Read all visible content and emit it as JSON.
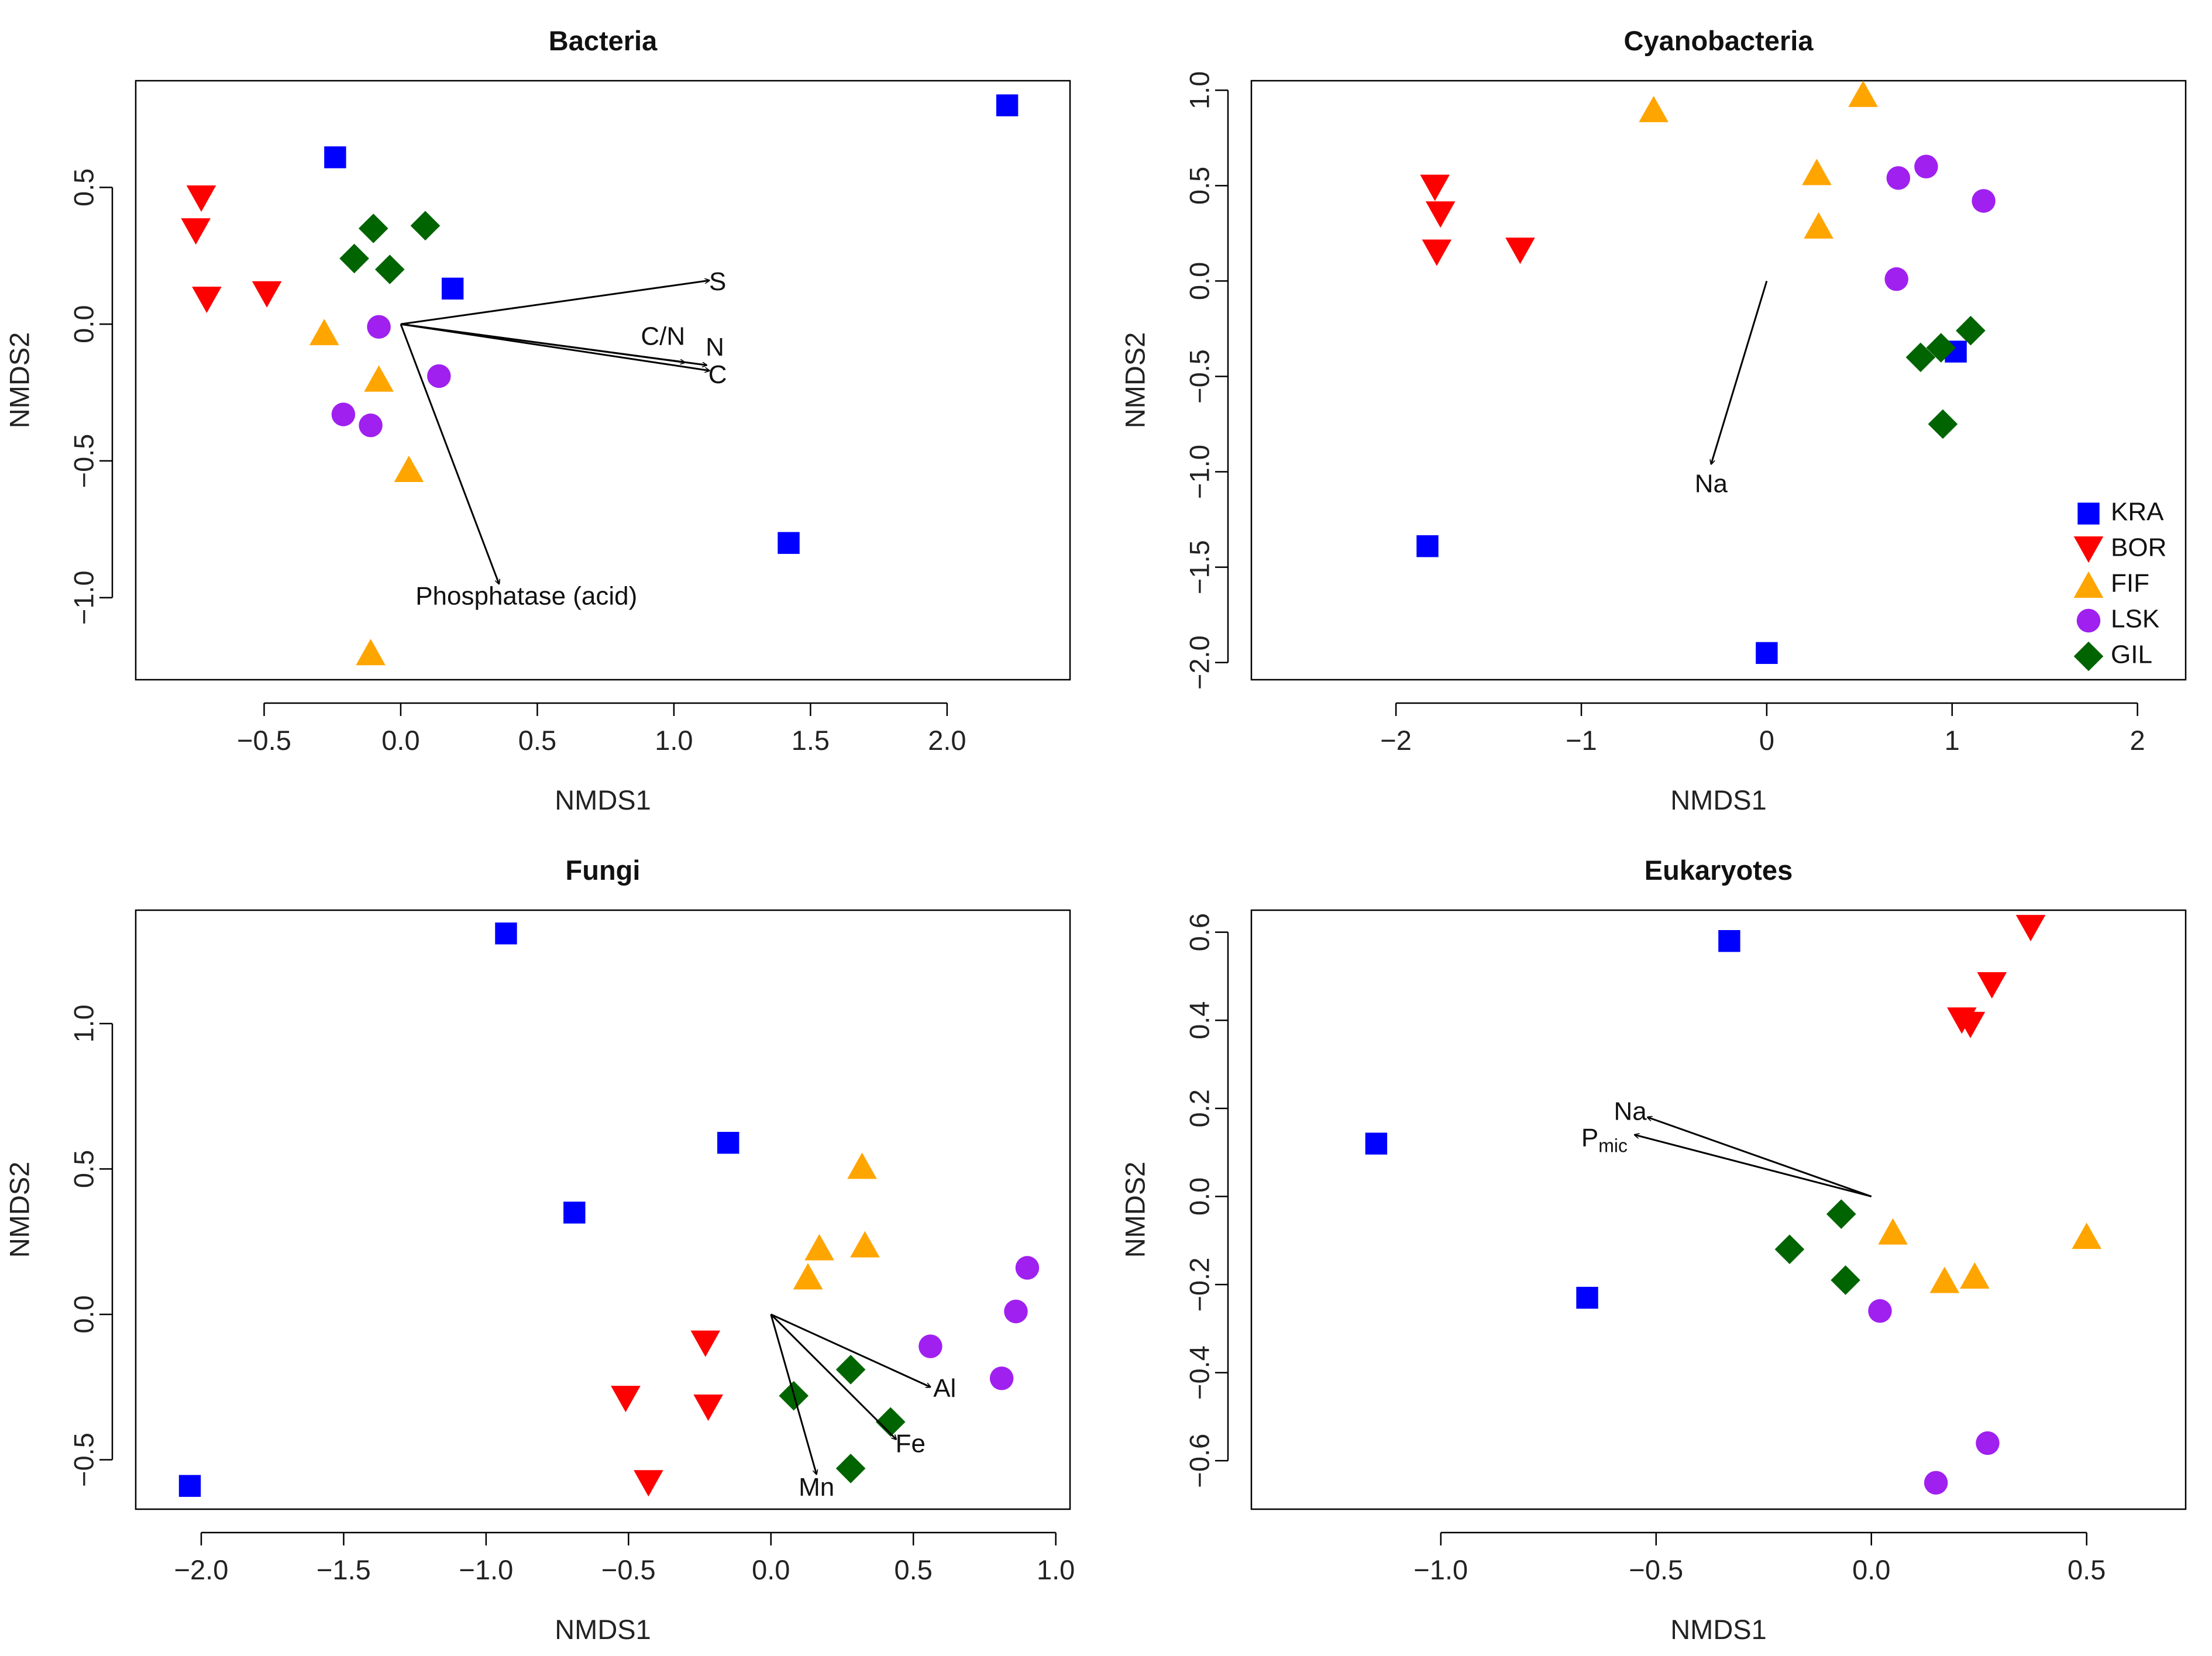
{
  "colors": {
    "KRA": "#0000ff",
    "BOR": "#ff0000",
    "FIF": "#ffa500",
    "LSK": "#a020f0",
    "GIL": "#006400"
  },
  "legend": {
    "placement": "bottom-right of Cyanobacteria panel",
    "items": [
      {
        "label": "KRA",
        "shape": "square"
      },
      {
        "label": "BOR",
        "shape": "triangle-down"
      },
      {
        "label": "FIF",
        "shape": "triangle-up"
      },
      {
        "label": "LSK",
        "shape": "circle"
      },
      {
        "label": "GIL",
        "shape": "diamond"
      }
    ]
  },
  "chart_data": [
    {
      "type": "scatter",
      "title": "Bacteria",
      "xlabel": "NMDS1",
      "ylabel": "NMDS2",
      "xlim": [
        -0.97,
        2.45
      ],
      "ylim": [
        -1.3,
        0.89
      ],
      "xticks": [
        -0.5,
        0.0,
        0.5,
        1.0,
        1.5,
        2.0
      ],
      "xtick_labels": [
        "−0.5",
        "0.0",
        "0.5",
        "1.0",
        "1.5",
        "2.0"
      ],
      "yticks": [
        -1.0,
        -0.5,
        0.0,
        0.5
      ],
      "ytick_labels": [
        "−1.0",
        "−0.5",
        "0.0",
        "0.5"
      ],
      "series": [
        {
          "name": "KRA",
          "points": [
            [
              -0.24,
              0.61
            ],
            [
              2.22,
              0.8
            ],
            [
              0.19,
              0.13
            ],
            [
              1.42,
              -0.8
            ]
          ]
        },
        {
          "name": "BOR",
          "points": [
            [
              -0.73,
              0.46
            ],
            [
              -0.75,
              0.34
            ],
            [
              -0.71,
              0.09
            ],
            [
              -0.49,
              0.11
            ]
          ]
        },
        {
          "name": "FIF",
          "points": [
            [
              -0.28,
              -0.03
            ],
            [
              -0.08,
              -0.2
            ],
            [
              0.03,
              -0.53
            ],
            [
              -0.11,
              -1.2
            ]
          ]
        },
        {
          "name": "LSK",
          "points": [
            [
              -0.08,
              -0.01
            ],
            [
              0.14,
              -0.19
            ],
            [
              -0.21,
              -0.33
            ],
            [
              -0.11,
              -0.37
            ]
          ]
        },
        {
          "name": "GIL",
          "points": [
            [
              -0.1,
              0.35
            ],
            [
              0.09,
              0.36
            ],
            [
              -0.17,
              0.24
            ],
            [
              -0.04,
              0.2
            ]
          ]
        }
      ],
      "vectors": [
        {
          "label": "S",
          "end": [
            1.13,
            0.16
          ],
          "label_at": [
            1.16,
            0.15
          ]
        },
        {
          "label": "C/N",
          "end": [
            1.04,
            -0.14
          ],
          "label_at": [
            0.96,
            -0.05
          ]
        },
        {
          "label": "N",
          "end": [
            1.12,
            -0.15
          ],
          "label_at": [
            1.15,
            -0.09
          ]
        },
        {
          "label": "C",
          "end": [
            1.13,
            -0.17
          ],
          "label_at": [
            1.16,
            -0.19
          ]
        },
        {
          "label": "Phosphatase (acid)",
          "end": [
            0.36,
            -0.95
          ],
          "label_at": [
            0.46,
            -1.0
          ]
        }
      ]
    },
    {
      "type": "scatter",
      "title": "Cyanobacteria",
      "xlabel": "NMDS1",
      "ylabel": "NMDS2",
      "xlim": [
        -2.78,
        2.26
      ],
      "ylim": [
        -2.09,
        1.05
      ],
      "xticks": [
        -2,
        -1,
        0,
        1,
        2
      ],
      "xtick_labels": [
        "−2",
        "−1",
        "0",
        "1",
        "2"
      ],
      "yticks": [
        -2.0,
        -1.5,
        -1.0,
        -0.5,
        0.0,
        0.5,
        1.0
      ],
      "ytick_labels": [
        "−2.0",
        "−1.5",
        "−1.0",
        "−0.5",
        "0.0",
        "0.5",
        "1.0"
      ],
      "series": [
        {
          "name": "KRA",
          "points": [
            [
              1.02,
              -0.37
            ],
            [
              -1.83,
              -1.39
            ],
            [
              0.0,
              -1.95
            ]
          ]
        },
        {
          "name": "BOR",
          "points": [
            [
              -1.79,
              0.49
            ],
            [
              -1.76,
              0.35
            ],
            [
              -1.78,
              0.15
            ],
            [
              -1.33,
              0.16
            ]
          ]
        },
        {
          "name": "FIF",
          "points": [
            [
              -0.61,
              0.9
            ],
            [
              0.52,
              0.98
            ],
            [
              0.27,
              0.57
            ],
            [
              0.28,
              0.29
            ]
          ]
        },
        {
          "name": "LSK",
          "points": [
            [
              0.71,
              0.54
            ],
            [
              0.86,
              0.6
            ],
            [
              1.17,
              0.42
            ],
            [
              0.7,
              0.01
            ]
          ]
        },
        {
          "name": "GIL",
          "points": [
            [
              1.1,
              -0.26
            ],
            [
              0.94,
              -0.35
            ],
            [
              0.83,
              -0.4
            ],
            [
              0.95,
              -0.75
            ]
          ]
        }
      ],
      "vectors": [
        {
          "label": "Na",
          "end": [
            -0.3,
            -0.96
          ],
          "label_at": [
            -0.3,
            -1.07
          ]
        }
      ]
    },
    {
      "type": "scatter",
      "title": "Fungi",
      "xlabel": "NMDS1",
      "ylabel": "NMDS2",
      "xlim": [
        -2.23,
        1.05
      ],
      "ylim": [
        -0.67,
        1.39
      ],
      "xticks": [
        -2.0,
        -1.5,
        -1.0,
        -0.5,
        0.0,
        0.5,
        1.0
      ],
      "xtick_labels": [
        "−2.0",
        "−1.5",
        "−1.0",
        "−0.5",
        "0.0",
        "0.5",
        "1.0"
      ],
      "yticks": [
        -0.5,
        0.0,
        0.5,
        1.0
      ],
      "ytick_labels": [
        "−0.5",
        "0.0",
        "0.5",
        "1.0"
      ],
      "series": [
        {
          "name": "KRA",
          "points": [
            [
              -0.93,
              1.31
            ],
            [
              -0.15,
              0.59
            ],
            [
              -0.69,
              0.35
            ],
            [
              -2.04,
              -0.59
            ]
          ]
        },
        {
          "name": "BOR",
          "points": [
            [
              -0.23,
              -0.1
            ],
            [
              -0.51,
              -0.29
            ],
            [
              -0.22,
              -0.32
            ],
            [
              -0.43,
              -0.58
            ]
          ]
        },
        {
          "name": "FIF",
          "points": [
            [
              0.32,
              0.51
            ],
            [
              0.33,
              0.24
            ],
            [
              0.17,
              0.23
            ],
            [
              0.13,
              0.13
            ]
          ]
        },
        {
          "name": "LSK",
          "points": [
            [
              0.9,
              0.16
            ],
            [
              0.86,
              0.01
            ],
            [
              0.56,
              -0.11
            ],
            [
              0.81,
              -0.22
            ]
          ]
        },
        {
          "name": "GIL",
          "points": [
            [
              0.28,
              -0.19
            ],
            [
              0.08,
              -0.28
            ],
            [
              0.42,
              -0.37
            ],
            [
              0.28,
              -0.53
            ]
          ]
        }
      ],
      "vectors": [
        {
          "label": "Al",
          "end": [
            0.56,
            -0.25
          ],
          "label_at": [
            0.61,
            -0.26
          ]
        },
        {
          "label": "Fe",
          "end": [
            0.44,
            -0.43
          ],
          "label_at": [
            0.49,
            -0.45
          ]
        },
        {
          "label": "Mn",
          "end": [
            0.16,
            -0.55
          ],
          "label_at": [
            0.16,
            -0.6
          ]
        }
      ]
    },
    {
      "type": "scatter",
      "title": "Eukaryotes",
      "xlabel": "NMDS1",
      "ylabel": "NMDS2",
      "xlim": [
        -1.44,
        0.73
      ],
      "ylim": [
        -0.71,
        0.65
      ],
      "xticks": [
        -1.0,
        -0.5,
        0.0,
        0.5
      ],
      "xtick_labels": [
        "−1.0",
        "−0.5",
        "0.0",
        "0.5"
      ],
      "yticks": [
        -0.6,
        -0.4,
        -0.2,
        0.0,
        0.2,
        0.4,
        0.6
      ],
      "ytick_labels": [
        "−0.6",
        "−0.4",
        "−0.2",
        "0.0",
        "0.2",
        "0.4",
        "0.6"
      ],
      "series": [
        {
          "name": "KRA",
          "points": [
            [
              -0.33,
              0.58
            ],
            [
              -1.15,
              0.12
            ],
            [
              -0.66,
              -0.23
            ]
          ]
        },
        {
          "name": "BOR",
          "points": [
            [
              0.37,
              0.61
            ],
            [
              0.28,
              0.48
            ],
            [
              0.21,
              0.4
            ],
            [
              0.23,
              0.39
            ]
          ]
        },
        {
          "name": "FIF",
          "points": [
            [
              0.05,
              -0.08
            ],
            [
              0.5,
              -0.09
            ],
            [
              0.17,
              -0.19
            ],
            [
              0.24,
              -0.18
            ]
          ]
        },
        {
          "name": "LSK",
          "points": [
            [
              0.02,
              -0.26
            ],
            [
              0.27,
              -0.56
            ],
            [
              0.15,
              -0.65
            ]
          ]
        },
        {
          "name": "GIL",
          "points": [
            [
              -0.07,
              -0.04
            ],
            [
              -0.19,
              -0.12
            ],
            [
              -0.06,
              -0.19
            ]
          ]
        }
      ],
      "vectors": [
        {
          "label": "Na",
          "end": [
            -0.52,
            0.18
          ],
          "label_at": [
            -0.56,
            0.19
          ]
        },
        {
          "label": "P",
          "subscript": "mic",
          "end": [
            -0.55,
            0.14
          ],
          "label_at": [
            -0.62,
            0.13
          ]
        }
      ]
    }
  ]
}
